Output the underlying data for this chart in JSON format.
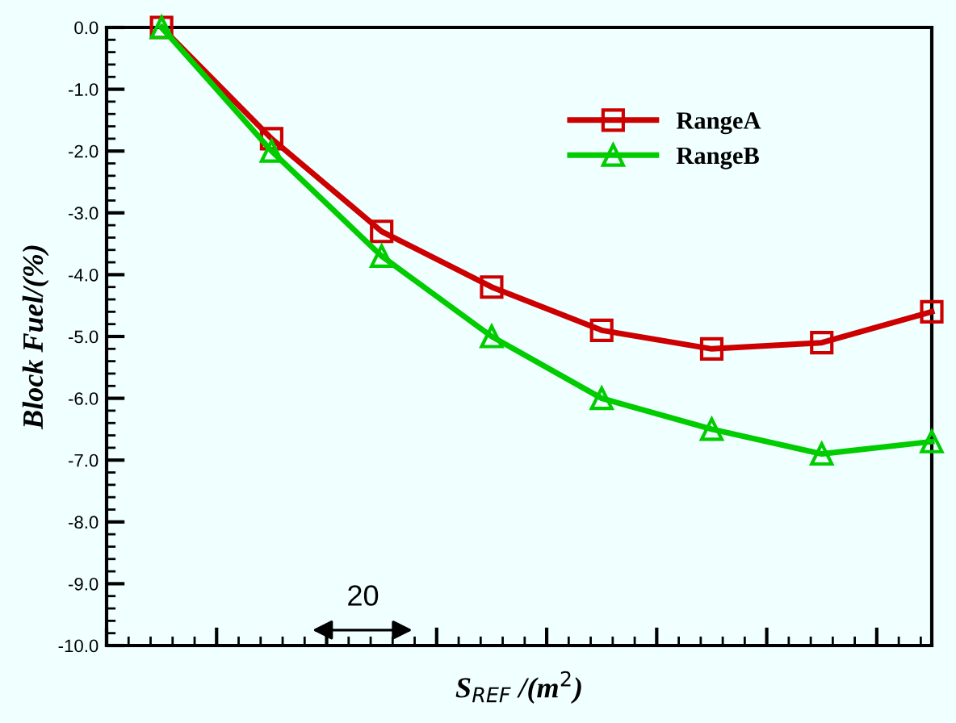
{
  "chart_data": {
    "type": "line",
    "xlabel": "S$_{REF}$ /(m$^{2}$)",
    "ylabel": "Block Fuel/(%)",
    "categories": [
      null,
      null,
      null,
      null,
      null,
      null,
      null,
      null
    ],
    "series": [
      {
        "name": "RangeA",
        "color": "#cc0000",
        "marker": "square",
        "values": [
          0.0,
          -1.8,
          -3.3,
          -4.2,
          -4.9,
          -5.2,
          -5.1,
          -4.6
        ]
      },
      {
        "name": "RangeB",
        "color": "#00cc00",
        "marker": "triangle",
        "values": [
          0.0,
          -2.0,
          -3.7,
          -5.0,
          -6.0,
          -6.5,
          -6.9,
          -6.7
        ]
      }
    ],
    "ylim": [
      -10,
      0
    ],
    "yticks": [
      {
        "value": 0,
        "label": "0.0"
      },
      {
        "value": -1,
        "label": "-1.0"
      },
      {
        "value": -2,
        "label": "-2.0"
      },
      {
        "value": -3,
        "label": "-3.0"
      },
      {
        "value": -4,
        "label": "-4.0"
      },
      {
        "value": -5,
        "label": "-5.0"
      },
      {
        "value": -6,
        "label": "-6.0"
      },
      {
        "value": -7,
        "label": "-7.0"
      },
      {
        "value": -8,
        "label": "-8.0"
      },
      {
        "value": -9,
        "label": "-9.0"
      },
      {
        "value": -10,
        "label": "-10.0"
      }
    ],
    "tick_labels": "y",
    "annotations": [
      "20"
    ],
    "legend": "top right",
    "grid": false,
    "line_style": "solid"
  }
}
